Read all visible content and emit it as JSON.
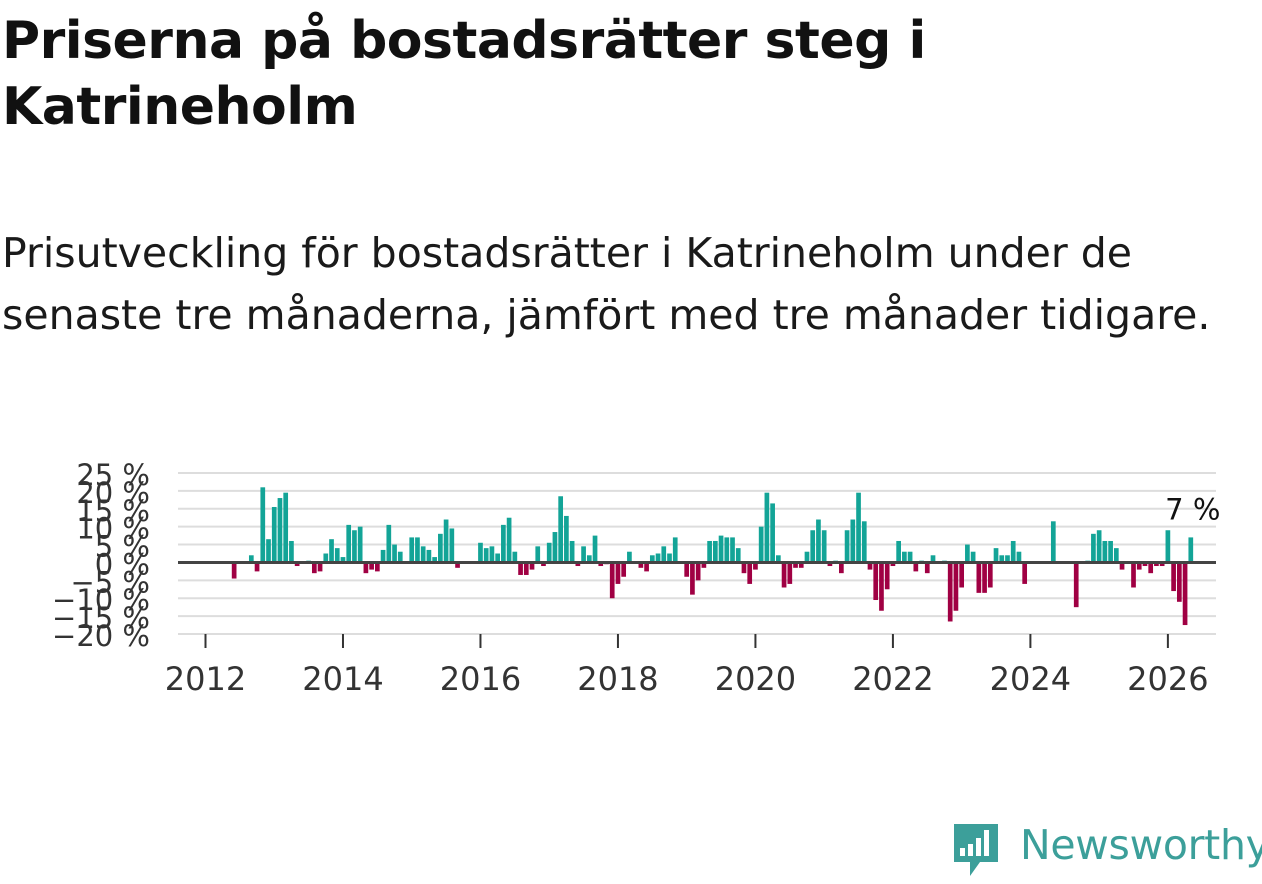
{
  "title": "Priserna på bostadsrätter steg i Katrineholm",
  "subtitle": "Prisutveckling för bostadsrätter i Katrineholm under de senaste tre månaderna, jämfört med tre månader tidigare.",
  "brand": {
    "name": "Newsworthy",
    "color": "#3c9f9a"
  },
  "colors": {
    "positive": "#13a497",
    "negative": "#a00043",
    "zero_line": "#444444",
    "grid": "#dddddd"
  },
  "chart_data": {
    "type": "bar",
    "title": "Priserna på bostadsrätter steg i Katrineholm",
    "xlabel": "",
    "ylabel": "",
    "ylim": [
      -20,
      25
    ],
    "y_ticks": [
      {
        "value": 25,
        "label": "25 %"
      },
      {
        "value": 20,
        "label": "20 %"
      },
      {
        "value": 15,
        "label": "15 %"
      },
      {
        "value": 10,
        "label": "10 %"
      },
      {
        "value": 5,
        "label": "5 %"
      },
      {
        "value": 0,
        "label": "0 %"
      },
      {
        "value": -5,
        "label": "−5 %"
      },
      {
        "value": -10,
        "label": "−10 %"
      },
      {
        "value": -15,
        "label": "−15 %"
      },
      {
        "value": -20,
        "label": "−20 %"
      }
    ],
    "x_ticks": [
      {
        "value": 2012,
        "label": "2012"
      },
      {
        "value": 2014,
        "label": "2014"
      },
      {
        "value": 2016,
        "label": "2016"
      },
      {
        "value": 2018,
        "label": "2018"
      },
      {
        "value": 2020,
        "label": "2020"
      },
      {
        "value": 2022,
        "label": "2022"
      },
      {
        "value": 2024,
        "label": "2024"
      },
      {
        "value": 2026,
        "label": "2026"
      }
    ],
    "xlim": [
      2011.6,
      2026.7
    ],
    "start": {
      "year": 2012,
      "month": 1
    },
    "values": [
      0,
      0,
      0,
      0,
      0,
      -4.5,
      0,
      0,
      2,
      -2.5,
      21,
      6.5,
      15.5,
      18,
      19.5,
      6,
      -1,
      0,
      0.5,
      -3,
      -2.5,
      2.5,
      6.5,
      4,
      1.5,
      10.5,
      9,
      10,
      -3,
      -2,
      -2.5,
      3.5,
      10.5,
      5,
      3,
      0,
      7,
      7,
      4.5,
      3.5,
      1.5,
      8,
      12,
      9.5,
      -1.5,
      0,
      0,
      0,
      5.5,
      4,
      4.5,
      2.5,
      10.5,
      12.5,
      3,
      -3.5,
      -3.5,
      -2,
      4.5,
      -1,
      5.5,
      8.5,
      18.5,
      13,
      6,
      -1,
      4.5,
      2,
      7.5,
      -1,
      -0.5,
      -10,
      -6,
      -4,
      3,
      0,
      -1.5,
      -2.5,
      2,
      2.5,
      4.5,
      2.5,
      7,
      0,
      -4,
      -9,
      -5,
      -1.5,
      6,
      6,
      7.5,
      7,
      7,
      4,
      -3,
      -6,
      -2,
      10,
      19.5,
      16.5,
      2,
      -7,
      -6,
      -1.5,
      -1.5,
      3,
      9,
      12,
      9,
      -1,
      0.5,
      -3,
      9,
      12,
      19.5,
      11.5,
      -2,
      -10.5,
      -13.5,
      -7.5,
      -1,
      6,
      3,
      3,
      -2.5,
      0.5,
      -3,
      2,
      0,
      0.5,
      -16.5,
      -13.5,
      -7,
      5,
      3,
      -8.5,
      -8.5,
      -7,
      4,
      2,
      2,
      6,
      3,
      -6,
      0,
      0,
      0,
      0,
      11.5,
      0,
      0,
      0,
      -12.5,
      0,
      0.5,
      8,
      9,
      6,
      6,
      4,
      -2,
      0,
      -7,
      -2,
      -1,
      -3,
      -1,
      -1,
      9,
      -8,
      -11,
      -17.5,
      7
    ],
    "last_label": "7 %"
  }
}
